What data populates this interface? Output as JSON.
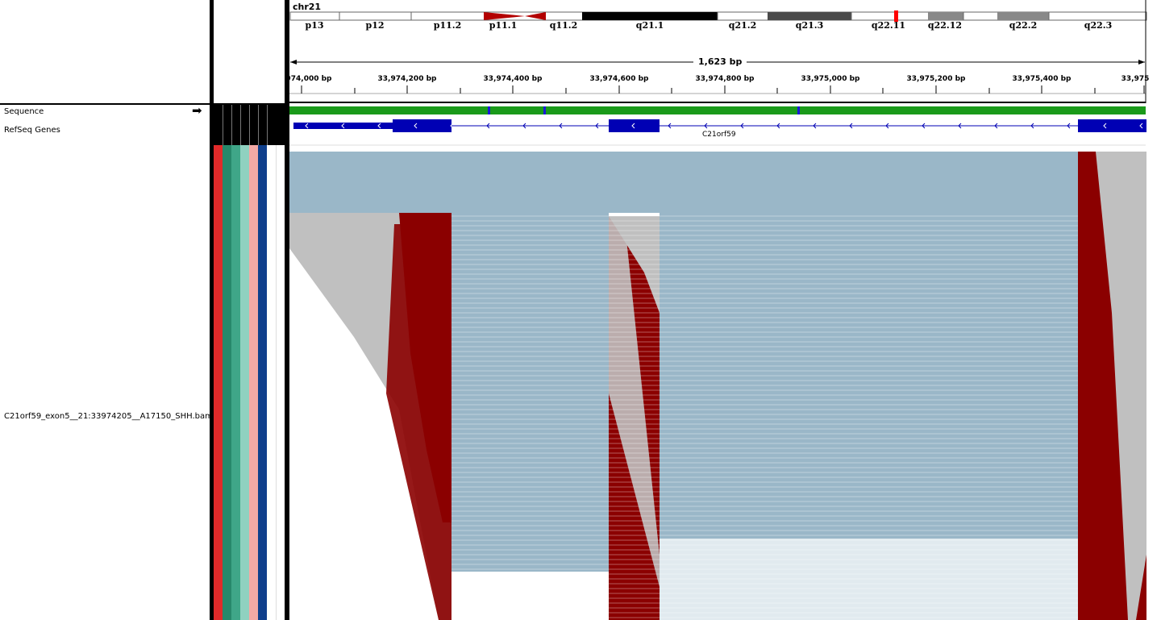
{
  "genome": {
    "chromosome": "chr21",
    "bands": [
      "p13",
      "p12",
      "p11.2",
      "p11.1",
      "q11.2",
      "q21.1",
      "q21.2",
      "q21.3",
      "q22.11",
      "q22.12",
      "q22.2",
      "q22.3"
    ],
    "span_label": "1,623 bp",
    "ruler_ticks": [
      "974,000 bp",
      "33,974,200 bp",
      "33,974,400 bp",
      "33,974,600 bp",
      "33,974,800 bp",
      "33,975,000 bp",
      "33,975,200 bp",
      "33,975,400 bp",
      "33,975"
    ]
  },
  "tracks": {
    "sequence": "Sequence",
    "refseq": "RefSeq Genes",
    "bam": "C21orf59_exon5__21:33974205__A17150_SHH.bam"
  },
  "gene": {
    "name": "C21orf59",
    "strand": "minus"
  },
  "colors": {
    "read": "#c0c0c0",
    "read_exon": "#9ab7c8",
    "softclip": "#8b0000",
    "gene": "#0000b4",
    "attr_cols": [
      "#e22a2a",
      "#27886b",
      "#3fa688",
      "#8fd1c0",
      "#f4a9a5",
      "#0f3f8c"
    ]
  }
}
